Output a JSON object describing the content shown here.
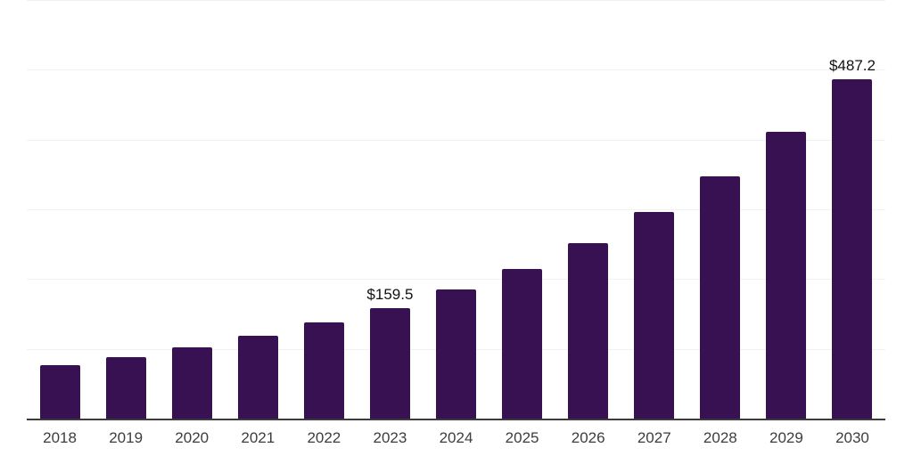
{
  "chart_data": {
    "type": "bar",
    "title": "",
    "categories": [
      "2018",
      "2019",
      "2020",
      "2021",
      "2022",
      "2023",
      "2024",
      "2025",
      "2026",
      "2027",
      "2028",
      "2029",
      "2030"
    ],
    "values": [
      78,
      89,
      103,
      120,
      139,
      159.5,
      186,
      216,
      253,
      297,
      348,
      412,
      487.2
    ],
    "annotations": [
      {
        "category": "2023",
        "label": "$159.5"
      },
      {
        "category": "2030",
        "label": "$487.2"
      }
    ],
    "xlabel": "",
    "ylabel": "",
    "ylim": [
      0,
      600
    ],
    "gridline_step": 100,
    "grid": true,
    "y_axis_labels_visible": false,
    "legend_visible": false,
    "colors": {
      "bar": "#371152",
      "gridline": "#f2f2f2",
      "axis_line": "#3c3c3c",
      "tick_label": "#3d3d3d",
      "data_label": "#111111",
      "background": "#ffffff"
    }
  }
}
